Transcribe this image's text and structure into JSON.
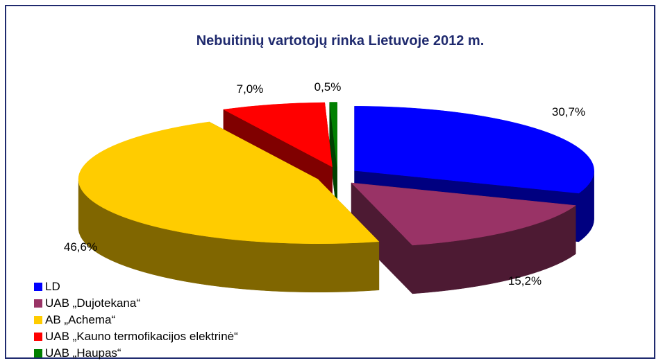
{
  "chart_data": {
    "type": "pie",
    "title": "Nebuitinių vartotojų rinka Lietuvoje 2012 m.",
    "legend_position": "bottom-left",
    "slices": [
      {
        "name": "LD",
        "value": 30.7,
        "label": "30,7%",
        "color": "#0000ff",
        "side_color": "#000080"
      },
      {
        "name": "UAB „Dujotekana“",
        "value": 15.2,
        "label": "15,2%",
        "color": "#993366",
        "side_color": "#4d1a33"
      },
      {
        "name": "AB „Achema“",
        "value": 46.6,
        "label": "46,6%",
        "color": "#ffcc00",
        "side_color": "#806600"
      },
      {
        "name": "UAB „Kauno termofikacijos elektrinė“",
        "value": 7.0,
        "label": "7,0%",
        "color": "#ff0000",
        "side_color": "#800000"
      },
      {
        "name": "UAB „Haupas“",
        "value": 0.5,
        "label": "0,5%",
        "color": "#008000",
        "side_color": "#004000"
      }
    ]
  }
}
